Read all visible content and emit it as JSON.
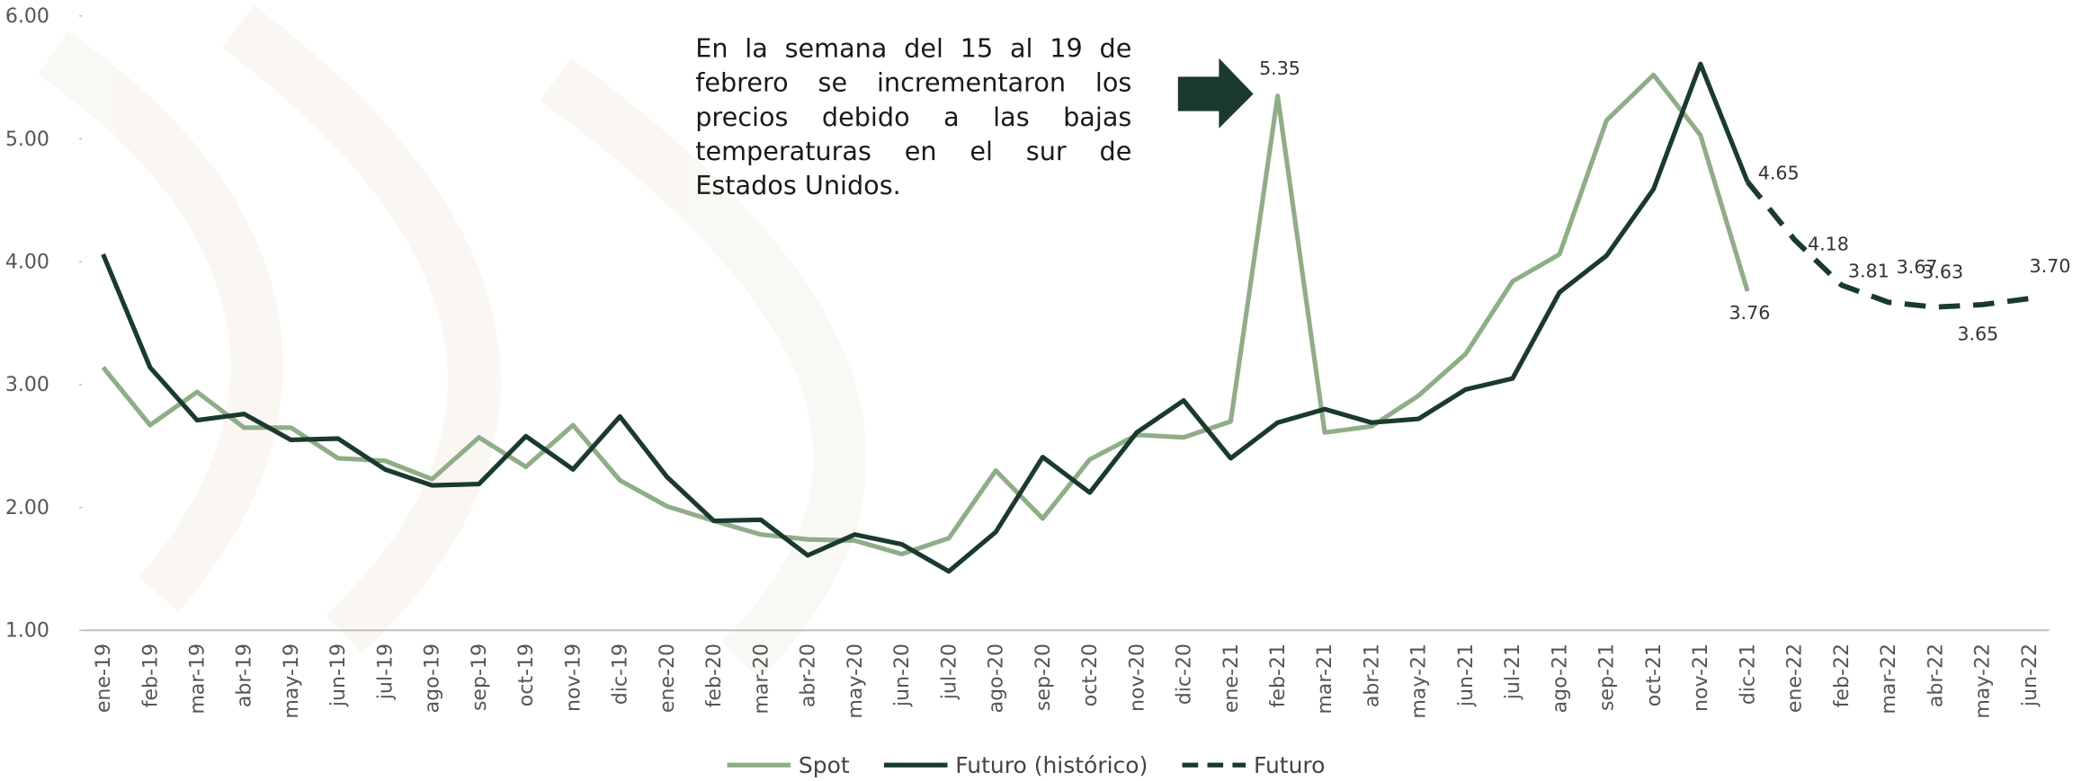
{
  "chart_data": {
    "type": "line",
    "annotation": "En la semana del 15 al 19 de febrero se incrementaron los precios debido a las bajas temperaturas en el sur de Estados Unidos.",
    "categories": [
      "ene-19",
      "feb-19",
      "mar-19",
      "abr-19",
      "may-19",
      "jun-19",
      "jul-19",
      "ago-19",
      "sep-19",
      "oct-19",
      "nov-19",
      "dic-19",
      "ene-20",
      "feb-20",
      "mar-20",
      "abr-20",
      "may-20",
      "jun-20",
      "jul-20",
      "ago-20",
      "sep-20",
      "oct-20",
      "nov-20",
      "dic-20",
      "ene-21",
      "feb-21",
      "mar-21",
      "abr-21",
      "may-21",
      "jun-21",
      "jul-21",
      "ago-21",
      "sep-21",
      "oct-21",
      "nov-21",
      "dic-21",
      "ene-22",
      "feb-22",
      "mar-22",
      "abr-22",
      "may-22",
      "jun-22"
    ],
    "series": [
      {
        "name": "Spot",
        "color": "#8fad88",
        "dashed": false,
        "values": [
          3.14,
          2.67,
          2.94,
          2.65,
          2.65,
          2.4,
          2.38,
          2.23,
          2.57,
          2.33,
          2.67,
          2.22,
          2.01,
          1.89,
          1.78,
          1.74,
          1.73,
          1.62,
          1.75,
          2.3,
          1.91,
          2.39,
          2.59,
          2.57,
          2.7,
          5.35,
          2.61,
          2.66,
          2.91,
          3.25,
          3.84,
          4.06,
          5.15,
          5.52,
          5.03,
          3.76,
          null,
          null,
          null,
          null,
          null,
          null
        ],
        "value_labels": [
          null,
          null,
          null,
          null,
          null,
          null,
          null,
          null,
          null,
          null,
          null,
          null,
          null,
          null,
          null,
          null,
          null,
          null,
          null,
          null,
          null,
          null,
          null,
          null,
          null,
          "5.35",
          null,
          null,
          null,
          null,
          null,
          null,
          null,
          null,
          null,
          "3.76",
          null,
          null,
          null,
          null,
          null,
          null
        ]
      },
      {
        "name": "Futuro (histórico)",
        "color": "#1a3a2e",
        "dashed": false,
        "values": [
          4.06,
          3.14,
          2.71,
          2.76,
          2.55,
          2.56,
          2.31,
          2.18,
          2.19,
          2.58,
          2.31,
          2.74,
          2.25,
          1.89,
          1.9,
          1.61,
          1.78,
          1.7,
          1.48,
          1.8,
          2.41,
          2.12,
          2.61,
          2.87,
          2.4,
          2.69,
          2.8,
          2.69,
          2.72,
          2.96,
          3.05,
          3.75,
          4.05,
          4.59,
          5.61,
          4.65,
          null,
          null,
          null,
          null,
          null,
          null
        ]
      },
      {
        "name": "Futuro",
        "color": "#1a3a2e",
        "dashed": true,
        "values": [
          null,
          null,
          null,
          null,
          null,
          null,
          null,
          null,
          null,
          null,
          null,
          null,
          null,
          null,
          null,
          null,
          null,
          null,
          null,
          null,
          null,
          null,
          null,
          null,
          null,
          null,
          null,
          null,
          null,
          null,
          null,
          null,
          null,
          null,
          null,
          4.65,
          4.18,
          3.81,
          3.67,
          3.63,
          3.65,
          3.7
        ],
        "value_labels": [
          null,
          null,
          null,
          null,
          null,
          null,
          null,
          null,
          null,
          null,
          null,
          null,
          null,
          null,
          null,
          null,
          null,
          null,
          null,
          null,
          null,
          null,
          null,
          null,
          null,
          null,
          null,
          null,
          null,
          null,
          null,
          null,
          null,
          null,
          null,
          "4.65",
          "4.18",
          "3.81",
          "3.67",
          "3.63",
          "3.65",
          "3.70"
        ]
      }
    ],
    "ylim": [
      1,
      6
    ],
    "yticks": [
      {
        "value": 1,
        "label": "1.00"
      },
      {
        "value": 2,
        "label": "2.00"
      },
      {
        "value": 3,
        "label": "3.00"
      },
      {
        "value": 4,
        "label": "4.00"
      },
      {
        "value": 5,
        "label": "5.00"
      },
      {
        "value": 6,
        "label": "6.00"
      }
    ],
    "grid": false,
    "legend": "bottom"
  }
}
